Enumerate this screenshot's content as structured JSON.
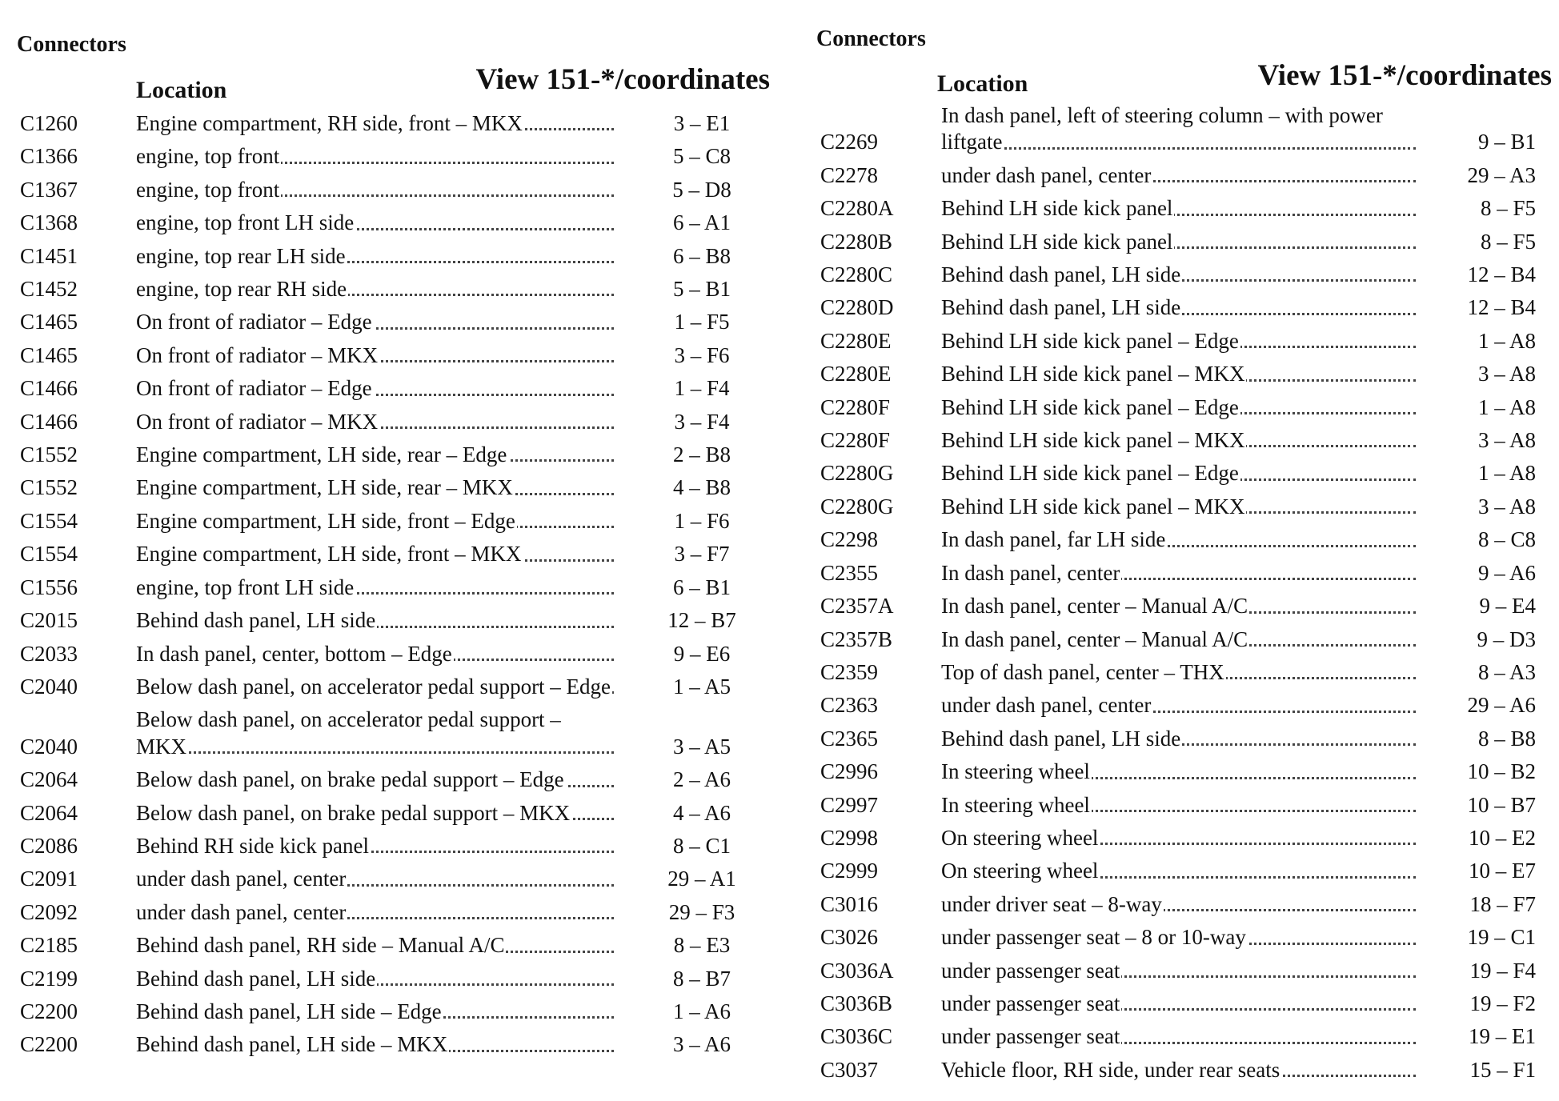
{
  "left": {
    "heading": "Connectors",
    "headers": {
      "location": "Location",
      "view": "View 151-*/coordinates"
    },
    "rows": [
      [
        "C1260",
        "Engine compartment, RH side, front – MKX",
        "3 – E1"
      ],
      [
        "C1366",
        "engine, top front",
        "5 – C8"
      ],
      [
        "C1367",
        "engine, top front",
        "5 – D8"
      ],
      [
        "C1368",
        "engine, top front LH side",
        "6 – A1"
      ],
      [
        "C1451",
        "engine, top rear LH side",
        "6 – B8"
      ],
      [
        "C1452",
        "engine, top rear RH side",
        "5 – B1"
      ],
      [
        "C1465",
        "On front of radiator – Edge",
        "1 – F5"
      ],
      [
        "C1465",
        "On front of radiator – MKX",
        "3 – F6"
      ],
      [
        "C1466",
        "On front of radiator – Edge",
        "1 – F4"
      ],
      [
        "C1466",
        "On front of radiator – MKX",
        "3 – F4"
      ],
      [
        "C1552",
        "Engine compartment, LH side, rear – Edge",
        "2 – B8"
      ],
      [
        "C1552",
        "Engine compartment, LH side, rear – MKX",
        "4 – B8"
      ],
      [
        "C1554",
        "Engine compartment, LH side, front – Edge",
        "1 – F6"
      ],
      [
        "C1554",
        "Engine compartment, LH side, front – MKX",
        "3 – F7"
      ],
      [
        "C1556",
        "engine, top front LH side",
        "6 – B1"
      ],
      [
        "C2015",
        "Behind dash panel, LH side",
        "12 – B7"
      ],
      [
        "C2033",
        "In dash panel, center, bottom – Edge",
        "9 – E6"
      ],
      [
        "C2040",
        "Below dash panel, on accelerator pedal support – Edge",
        "1 – A5"
      ],
      [
        "C2040",
        "Below dash panel, on accelerator pedal support – MKX",
        "3 – A5"
      ],
      [
        "C2064",
        "Below dash panel, on brake pedal support – Edge",
        "2 – A6"
      ],
      [
        "C2064",
        "Below dash panel, on brake pedal support – MKX",
        "4 – A6"
      ],
      [
        "C2086",
        "Behind RH side kick panel",
        "8 – C1"
      ],
      [
        "C2091",
        "under dash panel, center",
        "29 – A1"
      ],
      [
        "C2092",
        "under dash panel, center",
        "29 – F3"
      ],
      [
        "C2185",
        "Behind dash panel, RH side – Manual A/C",
        "8 – E3"
      ],
      [
        "C2199",
        "Behind dash panel, LH side",
        "8 – B7"
      ],
      [
        "C2200",
        "Behind dash panel, LH side – Edge",
        "1 – A6"
      ],
      [
        "C2200",
        "Behind dash panel, LH side – MKX",
        "3 – A6"
      ]
    ]
  },
  "right": {
    "heading": "Connectors",
    "headers": {
      "location": "Location",
      "view": "View 151-*/coordinates"
    },
    "rows": [
      [
        "C2269",
        "In dash panel, left of steering column – with power liftgate",
        "9 – B1"
      ],
      [
        "C2278",
        "under dash panel, center",
        "29 – A3"
      ],
      [
        "C2280A",
        "Behind LH side kick panel",
        "8 – F5"
      ],
      [
        "C2280B",
        "Behind LH side kick panel",
        "8 – F5"
      ],
      [
        "C2280C",
        "Behind dash panel, LH side",
        "12 – B4"
      ],
      [
        "C2280D",
        "Behind dash panel, LH side",
        "12 – B4"
      ],
      [
        "C2280E",
        "Behind LH side kick panel – Edge",
        "1 – A8"
      ],
      [
        "C2280E",
        "Behind LH side kick panel – MKX",
        "3 – A8"
      ],
      [
        "C2280F",
        "Behind LH side kick panel – Edge",
        "1 – A8"
      ],
      [
        "C2280F",
        "Behind LH side kick panel – MKX",
        "3 – A8"
      ],
      [
        "C2280G",
        "Behind LH side kick panel – Edge",
        "1 – A8"
      ],
      [
        "C2280G",
        "Behind LH side kick panel – MKX",
        "3 – A8"
      ],
      [
        "C2298",
        "In dash panel, far LH side",
        "8 – C8"
      ],
      [
        "C2355",
        "In dash panel, center",
        "9 – A6"
      ],
      [
        "C2357A",
        "In dash panel, center – Manual A/C",
        "9 – E4"
      ],
      [
        "C2357B",
        "In dash panel, center – Manual A/C",
        "9 – D3"
      ],
      [
        "C2359",
        "Top of dash panel, center – THX",
        "8 – A3"
      ],
      [
        "C2363",
        "under dash panel, center",
        "29 – A6"
      ],
      [
        "C2365",
        "Behind dash panel, LH side",
        "8 – B8"
      ],
      [
        "C2996",
        "In steering wheel",
        "10 – B2"
      ],
      [
        "C2997",
        "In steering wheel",
        "10 – B7"
      ],
      [
        "C2998",
        "On steering wheel",
        "10 – E2"
      ],
      [
        "C2999",
        "On steering wheel",
        "10 – E7"
      ],
      [
        "C3016",
        "under driver seat – 8-way",
        "18 – F7"
      ],
      [
        "C3026",
        "under passenger seat – 8 or 10-way",
        "19 – C1"
      ],
      [
        "C3036A",
        "under passenger seat",
        "19 – F4"
      ],
      [
        "C3036B",
        "under passenger seat",
        "19 – F2"
      ],
      [
        "C3036C",
        "under passenger seat",
        "19 – E1"
      ],
      [
        "C3037",
        "Vehicle floor, RH side, under rear seats",
        "15 – F1"
      ]
    ]
  }
}
